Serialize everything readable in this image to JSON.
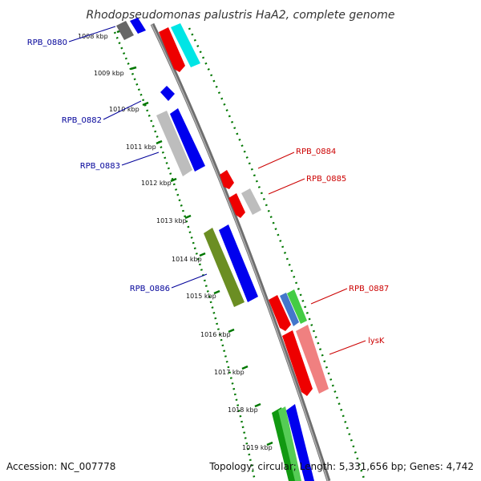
{
  "title": "Rhodopseudomonas palustris HaA2, complete genome",
  "footer": {
    "accession": "Accession: NC_007778",
    "summary": "Topology: circular; Length: 5,331,656 bp; Genes: 4,742"
  },
  "ticks": [
    "1008 kbp",
    "1009 kbp",
    "1010 kbp",
    "1011 kbp",
    "1012 kbp",
    "1013 kbp",
    "1014 kbp",
    "1015 kbp",
    "1016 kbp",
    "1017 kbp",
    "1018 kbp",
    "1019 kbp"
  ],
  "labels": {
    "rpb0880": "RPB_0880",
    "rpb0882": "RPB_0882",
    "rpb0883": "RPB_0883",
    "rpb0884": "RPB_0884",
    "rpb0885": "RPB_0885",
    "rpb0886": "RPB_0886",
    "rpb0887": "RPB_0887",
    "lysk": "lysK"
  },
  "colors": {
    "forward_label": "#cc0000",
    "reverse_label": "#000099",
    "backbone": "#808080",
    "tick_green": "#007700"
  }
}
